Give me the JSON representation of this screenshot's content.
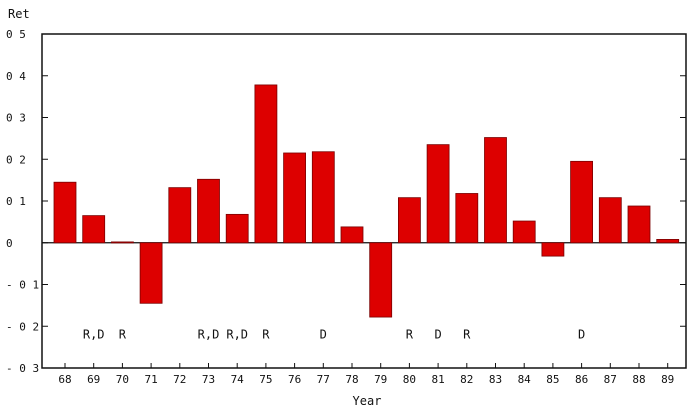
{
  "chart_data": {
    "type": "bar",
    "title": "",
    "xlabel": "Year",
    "ylabel": "Ret",
    "ylim": [
      -0.3,
      0.5
    ],
    "y_ticks": [
      {
        "value": 0.5,
        "label": "0 5"
      },
      {
        "value": 0.4,
        "label": "0 4"
      },
      {
        "value": 0.3,
        "label": "0 3"
      },
      {
        "value": 0.2,
        "label": "0 2"
      },
      {
        "value": 0.1,
        "label": "0 1"
      },
      {
        "value": 0.0,
        "label": "0"
      },
      {
        "value": -0.1,
        "label": "- 0 1"
      },
      {
        "value": -0.2,
        "label": "- 0 2"
      },
      {
        "value": -0.3,
        "label": "- 0 3"
      }
    ],
    "categories": [
      "68",
      "69",
      "70",
      "71",
      "72",
      "73",
      "74",
      "75",
      "76",
      "77",
      "78",
      "79",
      "80",
      "81",
      "82",
      "83",
      "84",
      "85",
      "86",
      "87",
      "88",
      "89"
    ],
    "values": [
      0.145,
      0.065,
      0.002,
      -0.145,
      0.132,
      0.152,
      0.068,
      0.378,
      0.215,
      0.218,
      0.038,
      -0.178,
      0.108,
      0.235,
      0.118,
      0.252,
      0.052,
      -0.032,
      0.195,
      0.108,
      0.088,
      0.008
    ],
    "annotations": [
      {
        "category": "69",
        "text": "R,D"
      },
      {
        "category": "70",
        "text": "R"
      },
      {
        "category": "73",
        "text": "R,D"
      },
      {
        "category": "74",
        "text": "R,D"
      },
      {
        "category": "75",
        "text": "R"
      },
      {
        "category": "77",
        "text": "D"
      },
      {
        "category": "80",
        "text": "R"
      },
      {
        "category": "81",
        "text": "D"
      },
      {
        "category": "82",
        "text": "R"
      },
      {
        "category": "86",
        "text": "D"
      }
    ],
    "annotation_level": -0.22,
    "grid": false,
    "colors": {
      "bar": "#dd0000",
      "bar_edge": "#7a0000",
      "frame": "#111111",
      "zero_line": "#111111",
      "tick_accent": "#009999"
    }
  }
}
